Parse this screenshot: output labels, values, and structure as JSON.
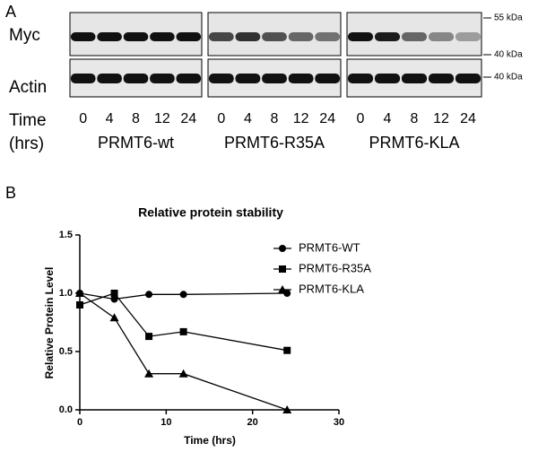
{
  "panel_a": {
    "label": "A",
    "rows": [
      "Myc",
      "Actin"
    ],
    "time_label": [
      "Time",
      "(hrs)"
    ],
    "groups": [
      {
        "name": "PRMT6-wt",
        "times": [
          "0",
          "4",
          "8",
          "12",
          "24"
        ]
      },
      {
        "name": "PRMT6-R35A",
        "times": [
          "0",
          "4",
          "8",
          "12",
          "24"
        ]
      },
      {
        "name": "PRMT6-KLA",
        "times": [
          "0",
          "4",
          "8",
          "12",
          "24"
        ]
      }
    ],
    "markers": [
      "55 kDa",
      "40 kDa",
      "40 kDa"
    ]
  },
  "panel_b_label": "B",
  "chart_data": {
    "type": "line",
    "title": "Relative protein stability",
    "x_label": "Time (hrs)",
    "y_label": "Relative Protein Level",
    "x": [
      0,
      4,
      8,
      12,
      24
    ],
    "series": [
      {
        "name": "PRMT6-WT",
        "color": "#000000",
        "marker": "circle",
        "values": [
          1.0,
          0.95,
          0.99,
          0.99,
          1.0
        ]
      },
      {
        "name": "PRMT6-R35A",
        "color": "#000000",
        "marker": "square",
        "values": [
          0.9,
          1.0,
          0.63,
          0.67,
          0.51
        ]
      },
      {
        "name": "PRMT6-KLA",
        "color": "#000000",
        "marker": "triangle",
        "values": [
          1.0,
          0.79,
          0.31,
          0.31,
          0.0
        ]
      }
    ],
    "xlim": [
      0,
      30
    ],
    "xticks": [
      0,
      10,
      20,
      30
    ],
    "ylim": [
      0,
      1.5
    ],
    "yticks": [
      {
        "value": 0,
        "label": "0.0"
      },
      0.5,
      {
        "value": 1,
        "label": "1.0"
      },
      1.5
    ],
    "legend": "right"
  }
}
